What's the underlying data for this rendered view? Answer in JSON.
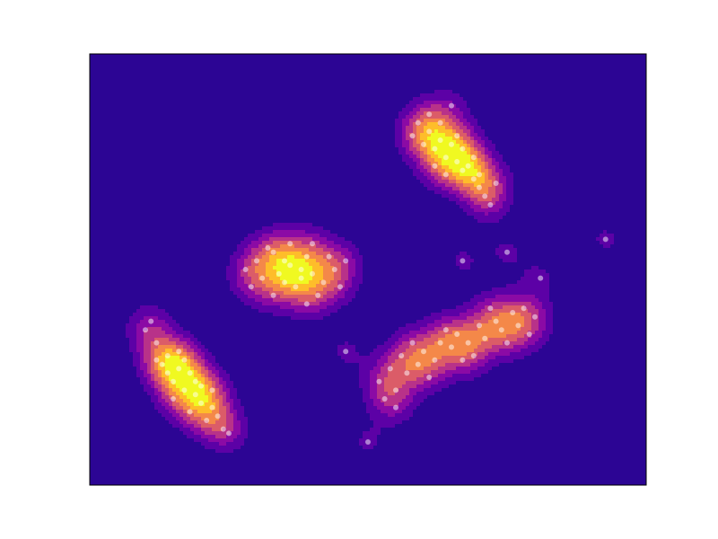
{
  "chart_data": {
    "type": "kde",
    "xlim": [
      0,
      100
    ],
    "ylim": [
      0,
      100
    ],
    "colors": [
      "#2c0594",
      "#5c01a6",
      "#8b0aa5",
      "#b83289",
      "#db5c68",
      "#f48849",
      "#febd2a",
      "#f0f921"
    ],
    "point_color": "#ffffff",
    "x": [
      10,
      12,
      14,
      13,
      16,
      18,
      15,
      17,
      19,
      20,
      22,
      18,
      21,
      16,
      11,
      19,
      14,
      20,
      23,
      24,
      15,
      12,
      22,
      17,
      25,
      30,
      33,
      36,
      38,
      40,
      35,
      37,
      42,
      39,
      34,
      31,
      44,
      41,
      36,
      28,
      33,
      45,
      38,
      35,
      39,
      46,
      32,
      40,
      29,
      43,
      59,
      61,
      63,
      62,
      64,
      66,
      65,
      67,
      69,
      68,
      70,
      60,
      63,
      66,
      71,
      72,
      58,
      64,
      67,
      69,
      61,
      62,
      70,
      73,
      65,
      52,
      54,
      55,
      57,
      56,
      59,
      60,
      62,
      63,
      65,
      66,
      68,
      70,
      71,
      73,
      74,
      76,
      77,
      78,
      75,
      53,
      58,
      67,
      72,
      80,
      55,
      61,
      79,
      64,
      69,
      92.7,
      67,
      75,
      81,
      50,
      46
    ],
    "y": [
      36,
      33,
      30,
      28,
      27,
      26,
      24,
      22,
      21,
      19,
      18,
      17,
      15,
      31,
      38,
      24,
      26,
      23,
      16,
      13,
      20,
      29,
      22,
      29,
      12,
      52,
      54,
      51,
      50,
      49,
      47,
      46,
      47,
      53,
      49,
      48,
      50,
      44,
      56,
      50,
      44,
      46,
      48,
      52,
      42,
      52,
      55,
      56,
      46,
      53,
      84,
      82,
      80,
      78,
      76,
      75,
      79,
      73,
      71,
      74,
      69,
      79,
      84,
      81,
      67,
      65,
      81,
      72,
      78,
      76,
      86,
      74,
      72,
      70,
      88,
      24,
      27,
      22,
      26,
      30,
      28,
      31,
      29,
      33,
      32,
      35,
      33,
      37,
      34,
      38,
      36,
      40,
      37,
      41,
      33,
      20,
      33,
      29,
      41,
      39,
      18,
      25,
      35,
      36,
      30,
      57,
      52,
      54,
      48,
      10,
      31
    ]
  }
}
